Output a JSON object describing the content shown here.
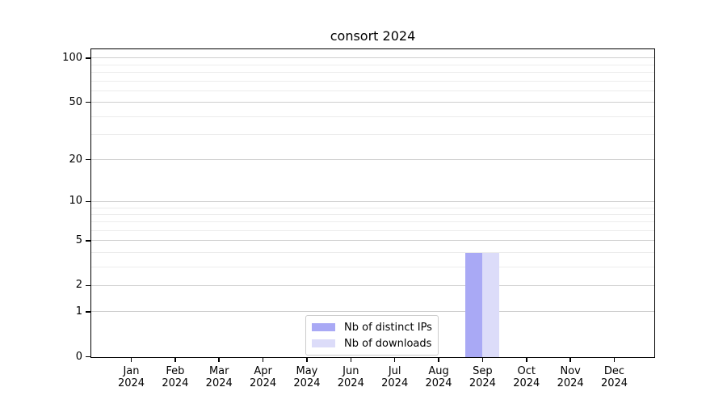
{
  "chart_data": {
    "type": "bar",
    "title": "consort 2024",
    "categories": [
      "Jan 2024",
      "Feb 2024",
      "Mar 2024",
      "Apr 2024",
      "May 2024",
      "Jun 2024",
      "Jul 2024",
      "Aug 2024",
      "Sep 2024",
      "Oct 2024",
      "Nov 2024",
      "Dec 2024"
    ],
    "series": [
      {
        "name": "Nb of distinct IPs",
        "color": "#a9a9f5",
        "values": [
          0,
          0,
          0,
          0,
          0,
          0,
          0,
          0,
          4,
          0,
          0,
          0
        ]
      },
      {
        "name": "Nb of downloads",
        "color": "#dcdcf9",
        "values": [
          0,
          0,
          0,
          0,
          0,
          0,
          0,
          0,
          4,
          0,
          0,
          0
        ]
      }
    ],
    "xlabel": "",
    "ylabel": "",
    "y_axis": {
      "scale": "symlog",
      "ticks": [
        0,
        1,
        2,
        5,
        10,
        20,
        50,
        100
      ],
      "minor_ticks": [
        3,
        4,
        6,
        7,
        8,
        9,
        30,
        40,
        60,
        70,
        80,
        90
      ],
      "ylim": [
        0,
        113.8
      ]
    },
    "grid": {
      "horizontal_major": true,
      "horizontal_minor": true,
      "vertical": false
    },
    "legend_position": "bottom-center"
  },
  "colors": {
    "bar_distinct_ips": "#a9a9f5",
    "bar_downloads": "#dcdcf9",
    "grid_major": "#cfcfcf",
    "grid_minor": "#ececec",
    "axis": "#000000",
    "background": "#ffffff"
  }
}
